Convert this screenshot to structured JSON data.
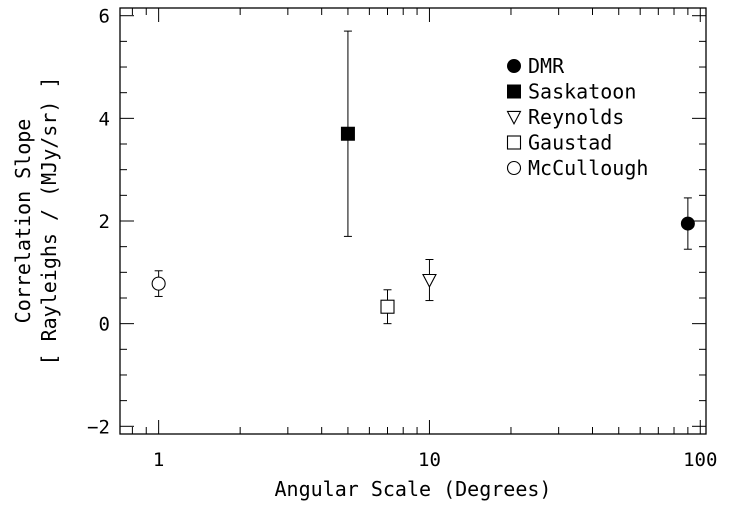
{
  "chart_data": {
    "type": "scatter",
    "title": "",
    "xlabel": "Angular Scale (Degrees)",
    "ylabel_line1": "Correlation Slope",
    "ylabel_line2": "[ Rayleighs / (MJy/sr) ]",
    "x_scale": "log",
    "xlim": [
      0.72,
      105
    ],
    "ylim": [
      -2.15,
      6.15
    ],
    "x_major_ticks": [
      1,
      10,
      100
    ],
    "x_tick_labels": [
      "1",
      "10",
      "100"
    ],
    "y_major_ticks": [
      -2,
      0,
      2,
      4,
      6
    ],
    "y_tick_labels": [
      "−2",
      "0",
      "2",
      "4",
      "6"
    ],
    "legend_position": "top-right",
    "series": [
      {
        "name": "DMR",
        "marker": "filled-circle",
        "points": [
          {
            "x": 90,
            "y": 1.95,
            "yerr_low": 0.5,
            "yerr_high": 0.5
          }
        ]
      },
      {
        "name": "Saskatoon",
        "marker": "filled-square",
        "points": [
          {
            "x": 5,
            "y": 3.7,
            "yerr_low": 2.0,
            "yerr_high": 2.0
          }
        ]
      },
      {
        "name": "Reynolds",
        "marker": "open-triangle-down",
        "points": [
          {
            "x": 10,
            "y": 0.85,
            "yerr_low": 0.4,
            "yerr_high": 0.4
          }
        ]
      },
      {
        "name": "Gaustad",
        "marker": "open-square",
        "points": [
          {
            "x": 7,
            "y": 0.33,
            "yerr_low": 0.33,
            "yerr_high": 0.33
          }
        ]
      },
      {
        "name": "McCullough",
        "marker": "open-circle",
        "points": [
          {
            "x": 1,
            "y": 0.78,
            "yerr_low": 0.25,
            "yerr_high": 0.25
          }
        ]
      }
    ]
  }
}
